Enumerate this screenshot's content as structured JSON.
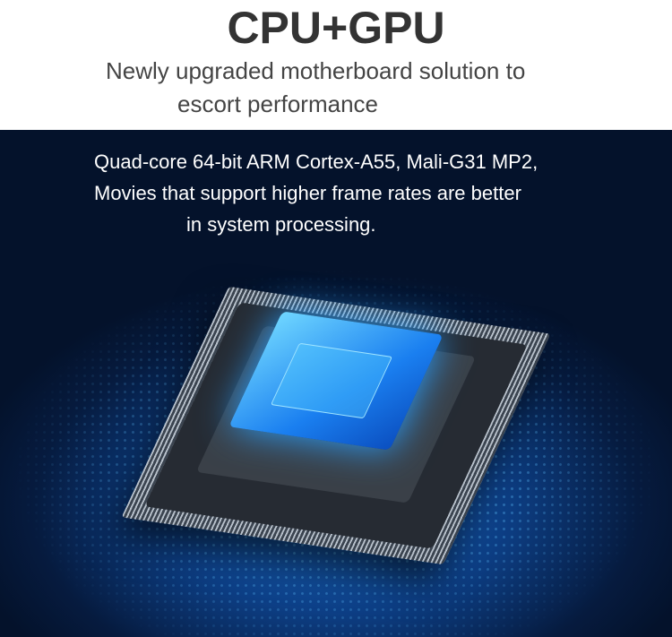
{
  "header": {
    "title": "CPU+GPU",
    "subtitle_line1": "Newly upgraded motherboard solution to",
    "subtitle_line2": "escort performance"
  },
  "hero": {
    "desc_line1": "Quad-core 64-bit ARM Cortex-A55, Mali-G31 MP2,",
    "desc_line2": "Movies that support higher frame rates are better",
    "desc_line3": "in system processing."
  },
  "colors": {
    "title": "#333333",
    "hero_bg": "#061b3f",
    "chip_glow": "#2aa0ff"
  }
}
